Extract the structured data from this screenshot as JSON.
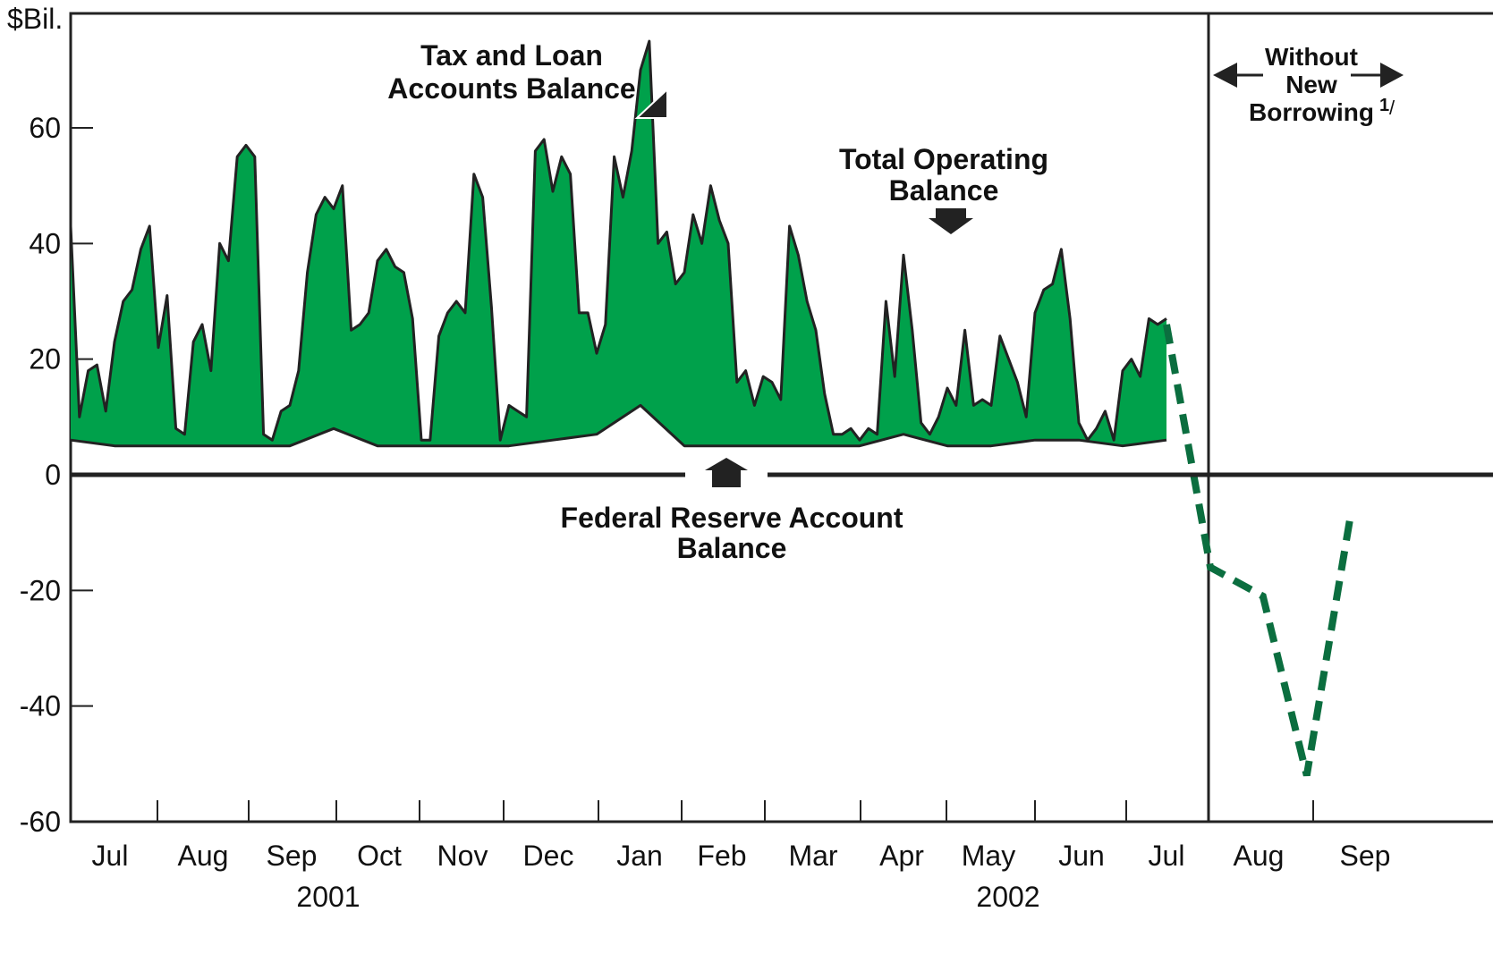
{
  "chart_data": {
    "type": "area",
    "ylabel": "$Bil.",
    "ylim": [
      -60,
      70
    ],
    "yticks": [
      "60",
      "40",
      "20",
      "0",
      "-20",
      "-40",
      "-60"
    ],
    "yticks_values": [
      60,
      40,
      20,
      0,
      -20,
      -40,
      -60
    ],
    "month_labels": [
      "Jul",
      "Aug",
      "Sep",
      "Oct",
      "Nov",
      "Dec",
      "Jan",
      "Feb",
      "Mar",
      "Apr",
      "May",
      "Jun",
      "Jul",
      "Aug",
      "Sep"
    ],
    "year_labels": [
      "2001",
      "2002"
    ],
    "colors": {
      "area_fill": "#00a14b",
      "line": "#222222",
      "projection": "#0b6e3f"
    },
    "annotations": {
      "tax_loan": [
        "Tax and Loan",
        "Accounts Balance"
      ],
      "total_operating": [
        "Total Operating",
        "Balance"
      ],
      "federal_reserve": [
        "Federal Reserve Account",
        "Balance"
      ],
      "without": [
        "Without",
        "New",
        "Borrowing"
      ],
      "footnote": "1",
      "footnote_suffix": "/"
    },
    "series": [
      {
        "kind": "total_operating_area",
        "note": "monthly envelope of total operating balance (estimated)",
        "x": [
          0.0,
          0.1,
          0.2,
          0.3,
          0.4,
          0.5,
          0.6,
          0.7,
          0.8,
          0.9,
          1.0,
          1.1,
          1.2,
          1.3,
          1.4,
          1.5,
          1.6,
          1.7,
          1.8,
          1.9,
          2.0,
          2.1,
          2.2,
          2.3,
          2.4,
          2.5,
          2.6,
          2.7,
          2.8,
          2.9,
          3.0,
          3.1,
          3.2,
          3.3,
          3.4,
          3.5,
          3.6,
          3.7,
          3.8,
          3.9,
          4.0,
          4.1,
          4.2,
          4.3,
          4.4,
          4.5,
          4.6,
          4.7,
          4.8,
          4.9,
          5.0,
          5.1,
          5.2,
          5.3,
          5.4,
          5.5,
          5.6,
          5.7,
          5.8,
          5.9,
          6.0,
          6.1,
          6.2,
          6.3,
          6.4,
          6.5,
          6.6,
          6.7,
          6.8,
          6.9,
          7.0,
          7.1,
          7.2,
          7.3,
          7.4,
          7.5,
          7.6,
          7.7,
          7.8,
          7.9,
          8.0,
          8.1,
          8.2,
          8.3,
          8.4,
          8.5,
          8.6,
          8.7,
          8.8,
          8.9,
          9.0,
          9.1,
          9.2,
          9.3,
          9.4,
          9.5,
          9.6,
          9.7,
          9.8,
          9.9,
          10.0,
          10.1,
          10.2,
          10.3,
          10.4,
          10.5,
          10.6,
          10.7,
          10.8,
          10.9,
          11.0,
          11.1,
          11.2,
          11.3,
          11.4,
          11.5,
          11.6,
          11.7,
          11.8,
          11.9,
          12.0,
          12.1,
          12.2,
          12.3,
          12.4,
          12.5
        ],
        "y": [
          43,
          10,
          18,
          19,
          11,
          23,
          30,
          32,
          39,
          43,
          22,
          31,
          8,
          7,
          23,
          26,
          18,
          40,
          37,
          55,
          57,
          55,
          7,
          6,
          11,
          12,
          18,
          35,
          45,
          48,
          46,
          50,
          25,
          26,
          28,
          37,
          39,
          36,
          35,
          27,
          6,
          6,
          24,
          28,
          30,
          28,
          52,
          48,
          29,
          6,
          12,
          11,
          10,
          56,
          58,
          49,
          55,
          52,
          28,
          28,
          21,
          26,
          55,
          48,
          56,
          70,
          75,
          40,
          42,
          33,
          35,
          45,
          40,
          50,
          44,
          40,
          16,
          18,
          12,
          17,
          16,
          13,
          43,
          38,
          30,
          25,
          14,
          7,
          7,
          8,
          6,
          8,
          7,
          30,
          17,
          38,
          25,
          9,
          7,
          10,
          15,
          12,
          25,
          12,
          13,
          12,
          24,
          20,
          16,
          10,
          28,
          32,
          33,
          39,
          27,
          9,
          6,
          8,
          11,
          6,
          18,
          20,
          17,
          27,
          26,
          27
        ]
      },
      {
        "kind": "federal_reserve_line",
        "note": "Federal Reserve account balance (estimated)",
        "x": [
          0.0,
          0.5,
          1.0,
          1.5,
          2.0,
          2.5,
          3.0,
          3.5,
          4.0,
          4.5,
          5.0,
          5.5,
          6.0,
          6.5,
          7.0,
          7.5,
          8.0,
          8.5,
          9.0,
          9.5,
          10.0,
          10.5,
          11.0,
          11.5,
          12.0,
          12.5
        ],
        "y": [
          6,
          5,
          5,
          5,
          5,
          5,
          8,
          5,
          5,
          5,
          5,
          6,
          7,
          12,
          5,
          5,
          5,
          5,
          5,
          7,
          5,
          5,
          6,
          6,
          5,
          6
        ]
      },
      {
        "kind": "projection_without_new_borrowing",
        "x": [
          12.5,
          13.0,
          13.6,
          14.1,
          14.6
        ],
        "y": [
          26,
          -16,
          -21,
          -52,
          -7
        ]
      }
    ]
  }
}
